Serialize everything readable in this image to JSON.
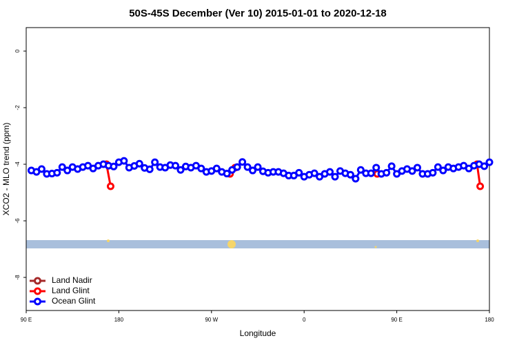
{
  "chart_data": {
    "type": "line",
    "title": "50S-45S December (Ver 10)   2015-01-01 to 2020-12-18",
    "x_label": "Longitude",
    "y_label": "XCO2 - MLO trend (ppm)",
    "xlim": [
      90,
      540
    ],
    "xticks": [
      {
        "value": 90,
        "label": "90 E"
      },
      {
        "value": 180,
        "label": "180"
      },
      {
        "value": 270,
        "label": "90 W"
      },
      {
        "value": 360,
        "label": "0"
      },
      {
        "value": 450,
        "label": "90 E"
      },
      {
        "value": 540,
        "label": "180"
      }
    ],
    "ylim": [
      -9.17,
      0.83
    ],
    "yticks": [
      0,
      -2,
      -4,
      -6,
      -8
    ],
    "legend": "bottom-left",
    "series": [
      {
        "name": "Land Nadir",
        "color": "#a52a2a",
        "x": [],
        "values": []
      },
      {
        "name": "Land Glint",
        "color": "#ff0000",
        "x": [
          168,
          172,
          null,
          288,
          293,
          null,
          431,
          null,
          528,
          531
        ],
        "values": [
          -4.0,
          -4.78,
          null,
          -4.34,
          -4.12,
          null,
          -4.34,
          null,
          -4.0,
          -4.78
        ]
      },
      {
        "name": "Ocean Glint",
        "color": "#0000ff",
        "x": [
          95,
          100,
          105,
          110,
          115,
          120,
          125,
          130,
          135,
          140,
          145,
          150,
          155,
          160,
          165,
          170,
          175,
          180,
          185,
          190,
          195,
          200,
          205,
          210,
          215,
          220,
          225,
          230,
          235,
          240,
          245,
          250,
          255,
          260,
          265,
          270,
          275,
          280,
          285,
          290,
          295,
          300,
          305,
          310,
          315,
          320,
          325,
          330,
          335,
          340,
          345,
          350,
          355,
          360,
          365,
          370,
          375,
          380,
          385,
          390,
          395,
          400,
          405,
          410,
          415,
          420,
          425,
          430,
          435,
          440,
          445,
          450,
          455,
          460,
          465,
          470,
          475,
          480,
          485,
          490,
          495,
          500,
          505,
          510,
          515,
          520,
          525,
          530,
          535,
          540
        ],
        "values": [
          -4.22,
          -4.27,
          -4.17,
          -4.34,
          -4.33,
          -4.3,
          -4.1,
          -4.22,
          -4.1,
          -4.17,
          -4.1,
          -4.05,
          -4.15,
          -4.05,
          -4.0,
          -4.05,
          -4.08,
          -3.93,
          -3.88,
          -4.12,
          -4.06,
          -3.98,
          -4.13,
          -4.18,
          -3.93,
          -4.1,
          -4.12,
          -4.03,
          -4.05,
          -4.2,
          -4.08,
          -4.12,
          -4.05,
          -4.15,
          -4.27,
          -4.24,
          -4.15,
          -4.27,
          -4.33,
          -4.2,
          -4.1,
          -3.92,
          -4.1,
          -4.22,
          -4.1,
          -4.25,
          -4.3,
          -4.27,
          -4.27,
          -4.32,
          -4.4,
          -4.4,
          -4.3,
          -4.44,
          -4.37,
          -4.32,
          -4.44,
          -4.34,
          -4.27,
          -4.44,
          -4.24,
          -4.32,
          -4.37,
          -4.51,
          -4.2,
          -4.32,
          -4.32,
          -4.12,
          -4.34,
          -4.3,
          -4.07,
          -4.34,
          -4.24,
          -4.17,
          -4.24,
          -4.12,
          -4.34,
          -4.34,
          -4.3,
          -4.1,
          -4.22,
          -4.1,
          -4.15,
          -4.1,
          -4.05,
          -4.15,
          -4.05,
          -4.0,
          -4.07,
          -3.93
        ]
      }
    ]
  }
}
